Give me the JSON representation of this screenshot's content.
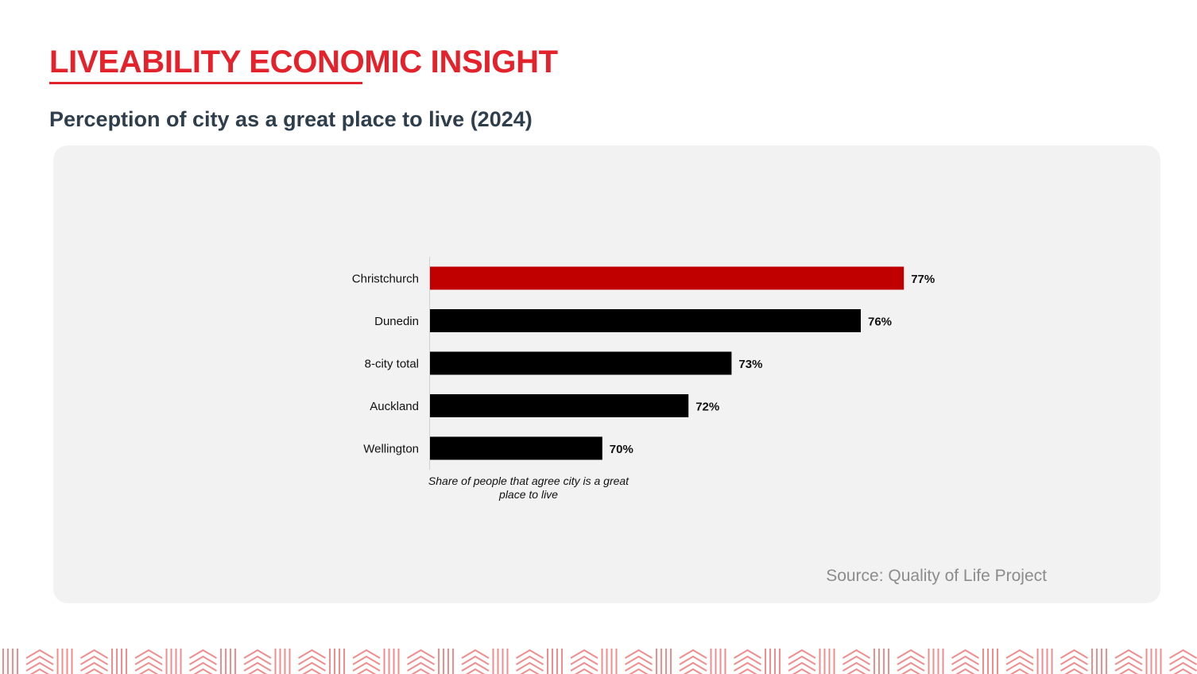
{
  "header": {
    "title": "LIVEABILITY ECONOMIC INSIGHT"
  },
  "subtitle": "Perception of city as a great place to live (2024)",
  "source": "Source: Quality of Life Project",
  "colors": {
    "brand_red": "#e4222b",
    "highlight_bar": "#c00000",
    "bar": "#000000",
    "panel": "#f2f2f2",
    "footer_pattern": "#f28c8c"
  },
  "chart_data": {
    "type": "bar",
    "orientation": "horizontal",
    "categories": [
      "Christchurch",
      "Dunedin",
      "8-city total",
      "Auckland",
      "Wellington"
    ],
    "values": [
      77,
      76,
      73,
      72,
      70
    ],
    "value_labels": [
      "77%",
      "76%",
      "73%",
      "72%",
      "70%"
    ],
    "highlight_index": 0,
    "xlabel": "Share of people that agree city is a great place to live",
    "ylabel": "",
    "title": "",
    "xlim": [
      66,
      77
    ],
    "grid": false,
    "legend": "none"
  }
}
